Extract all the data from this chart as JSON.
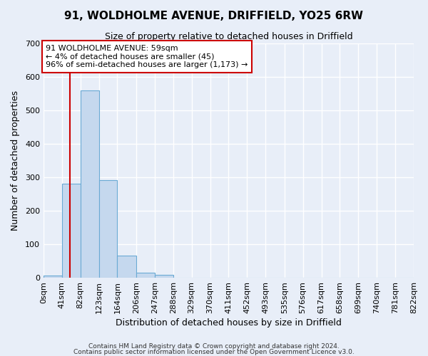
{
  "title": "91, WOLDHOLME AVENUE, DRIFFIELD, YO25 6RW",
  "subtitle": "Size of property relative to detached houses in Driffield",
  "xlabel": "Distribution of detached houses by size in Driffield",
  "ylabel": "Number of detached properties",
  "bin_edges": [
    0,
    41,
    82,
    123,
    164,
    206,
    247,
    288,
    329,
    370,
    411,
    452,
    493,
    535,
    576,
    617,
    658,
    699,
    740,
    781,
    822
  ],
  "bin_labels": [
    "0sqm",
    "41sqm",
    "82sqm",
    "123sqm",
    "164sqm",
    "206sqm",
    "247sqm",
    "288sqm",
    "329sqm",
    "370sqm",
    "411sqm",
    "452sqm",
    "493sqm",
    "535sqm",
    "576sqm",
    "617sqm",
    "658sqm",
    "699sqm",
    "740sqm",
    "781sqm",
    "822sqm"
  ],
  "bar_heights": [
    7,
    281,
    558,
    291,
    67,
    14,
    8,
    0,
    0,
    0,
    0,
    0,
    0,
    0,
    0,
    0,
    0,
    0,
    0,
    0
  ],
  "bar_color": "#c5d8ee",
  "bar_edge_color": "#6aaad4",
  "ylim": [
    0,
    700
  ],
  "yticks": [
    0,
    100,
    200,
    300,
    400,
    500,
    600,
    700
  ],
  "vline_x": 59,
  "vline_color": "#cc0000",
  "annotation_text": "91 WOLDHOLME AVENUE: 59sqm\n← 4% of detached houses are smaller (45)\n96% of semi-detached houses are larger (1,173) →",
  "annotation_box_color": "#ffffff",
  "annotation_box_edge": "#cc0000",
  "footer1": "Contains HM Land Registry data © Crown copyright and database right 2024.",
  "footer2": "Contains public sector information licensed under the Open Government Licence v3.0.",
  "bg_color": "#e8eef8",
  "grid_color": "#ffffff",
  "title_fontsize": 11,
  "subtitle_fontsize": 9,
  "xlabel_fontsize": 9,
  "ylabel_fontsize": 9,
  "tick_fontsize": 8,
  "annotation_fontsize": 8,
  "footer_fontsize": 6.5
}
